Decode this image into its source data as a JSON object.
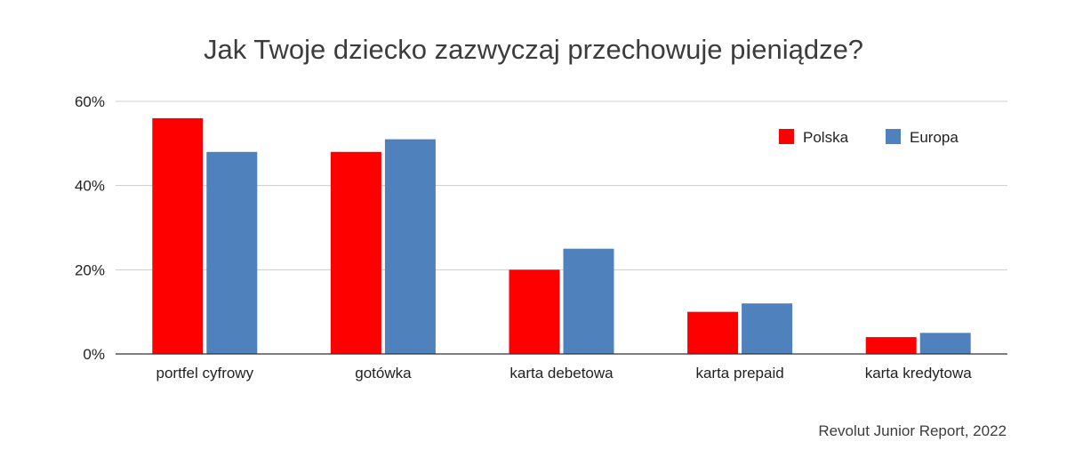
{
  "chart_data": {
    "type": "bar",
    "title": "Jak Twoje dziecko zazwyczaj przechowuje pieniądze?",
    "categories": [
      "portfel cyfrowy",
      "gotówka",
      "karta debetowa",
      "karta prepaid",
      "karta kredytowa"
    ],
    "series": [
      {
        "name": "Polska",
        "color": "#ff0000",
        "values": [
          56,
          48,
          20,
          10,
          4
        ]
      },
      {
        "name": "Europa",
        "color": "#4f81bd",
        "values": [
          48,
          51,
          25,
          12,
          5
        ]
      }
    ],
    "ylim": [
      0,
      60
    ],
    "yticks": [
      0,
      20,
      40,
      60
    ],
    "ytick_labels": [
      "0%",
      "20%",
      "40%",
      "60%"
    ],
    "grid": true,
    "legend_position": "top-right",
    "xlabel": "",
    "ylabel": ""
  },
  "source": "Revolut Junior Report, 2022"
}
